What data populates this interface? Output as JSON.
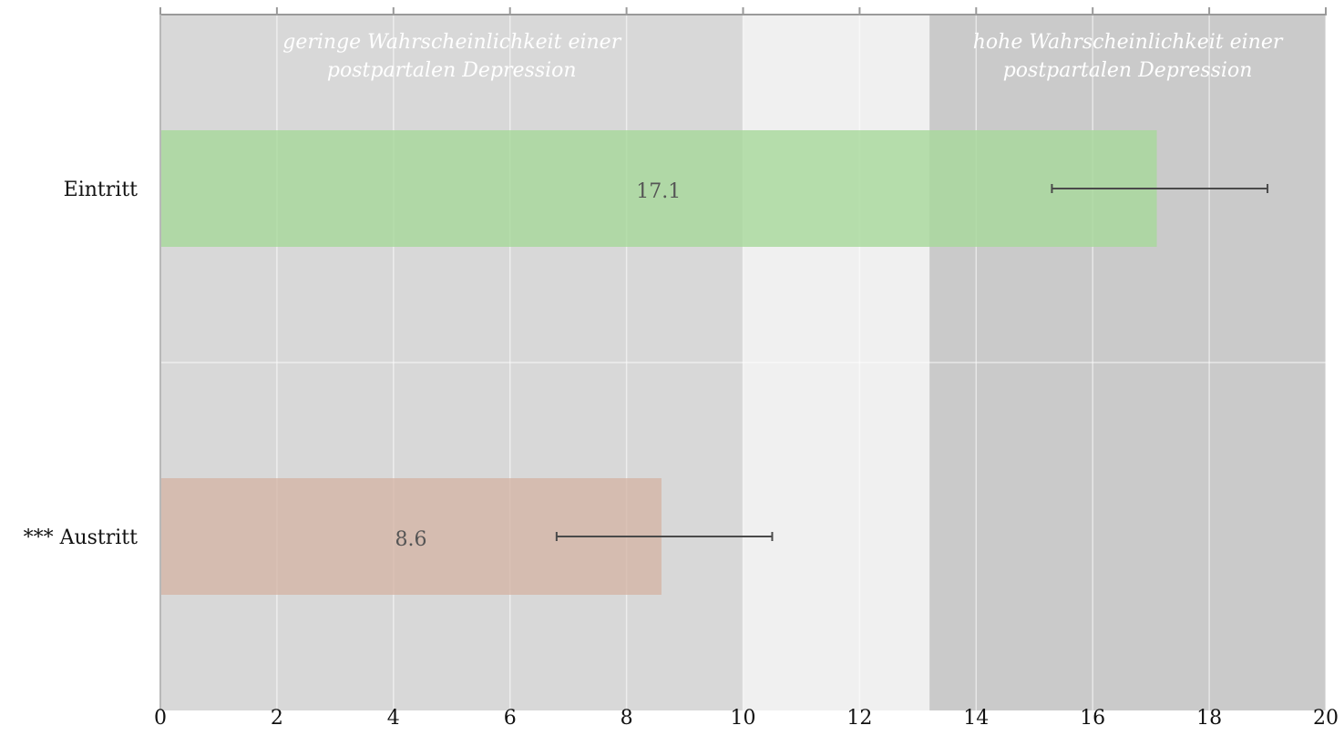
{
  "chart_data": {
    "type": "bar",
    "orientation": "horizontal",
    "categories": [
      "Eintritt",
      "*** Austritt"
    ],
    "values": [
      17.1,
      8.6
    ],
    "value_labels": [
      "17.1",
      "8.6"
    ],
    "error_bars": [
      {
        "low": 15.3,
        "high": 19.0
      },
      {
        "low": 6.8,
        "high": 10.5
      }
    ],
    "bar_colors": [
      "#a6d89a",
      "#d5b5a6"
    ],
    "xlim": [
      0,
      20
    ],
    "xticks": [
      0,
      2,
      4,
      6,
      8,
      10,
      12,
      14,
      16,
      18,
      20
    ],
    "xtick_labels": [
      "0",
      "2",
      "4",
      "6",
      "8",
      "10",
      "12",
      "14",
      "16",
      "18",
      "20"
    ],
    "zones": [
      {
        "from": 0,
        "to": 10,
        "color": "#d8d8d8",
        "label_lines": [
          "geringe Wahrscheinlichkeit einer",
          "postpartalen Depression"
        ]
      },
      {
        "from": 10,
        "to": 13.2,
        "color": "#f0f0f0",
        "label_lines": []
      },
      {
        "from": 13.2,
        "to": 20,
        "color": "#cacaca",
        "label_lines": [
          "hohe Wahrscheinlichkeit einer",
          "postpartalen Depression"
        ]
      }
    ],
    "grid": true,
    "title": "",
    "xlabel": "",
    "ylabel": ""
  }
}
